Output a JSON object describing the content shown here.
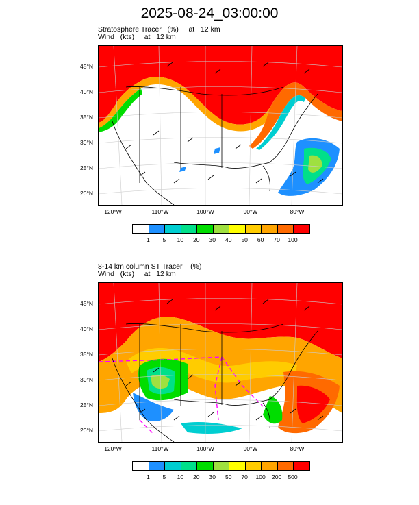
{
  "title": "2025-08-24_03:00:00",
  "panel1": {
    "subtitle1": "Stratosphere Tracer   (%)     at   12 km",
    "subtitle2": "Wind   (kts)     at   12 km",
    "lat_labels": [
      "45°N",
      "40°N",
      "35°N",
      "30°N",
      "25°N",
      "20°N"
    ],
    "lon_labels": [
      "120°W",
      "110°W",
      "100°W",
      "90°W",
      "80°W"
    ],
    "colorbar_labels": [
      "1",
      "5",
      "10",
      "20",
      "30",
      "40",
      "50",
      "60",
      "70",
      "100"
    ],
    "colorbar_colors": [
      "#ffffff",
      "#1e90ff",
      "#00ced1",
      "#00e08a",
      "#00dd00",
      "#9fe040",
      "#ffff00",
      "#ffcc00",
      "#ffa500",
      "#ff6a00",
      "#ff0000"
    ]
  },
  "panel2": {
    "subtitle1": "8-14 km column ST Tracer    (%)",
    "subtitle2": "Wind   (kts)     at   12 km",
    "lat_labels": [
      "45°N",
      "40°N",
      "35°N",
      "30°N",
      "25°N",
      "20°N"
    ],
    "lon_labels": [
      "120°W",
      "110°W",
      "100°W",
      "90°W",
      "80°W"
    ],
    "colorbar_labels": [
      "1",
      "5",
      "10",
      "20",
      "30",
      "50",
      "70",
      "100",
      "200",
      "500"
    ],
    "colorbar_colors": [
      "#ffffff",
      "#1e90ff",
      "#00ced1",
      "#00e08a",
      "#00dd00",
      "#9fe040",
      "#ffff00",
      "#ffcc00",
      "#ffa500",
      "#ff6a00",
      "#ff0000"
    ]
  }
}
